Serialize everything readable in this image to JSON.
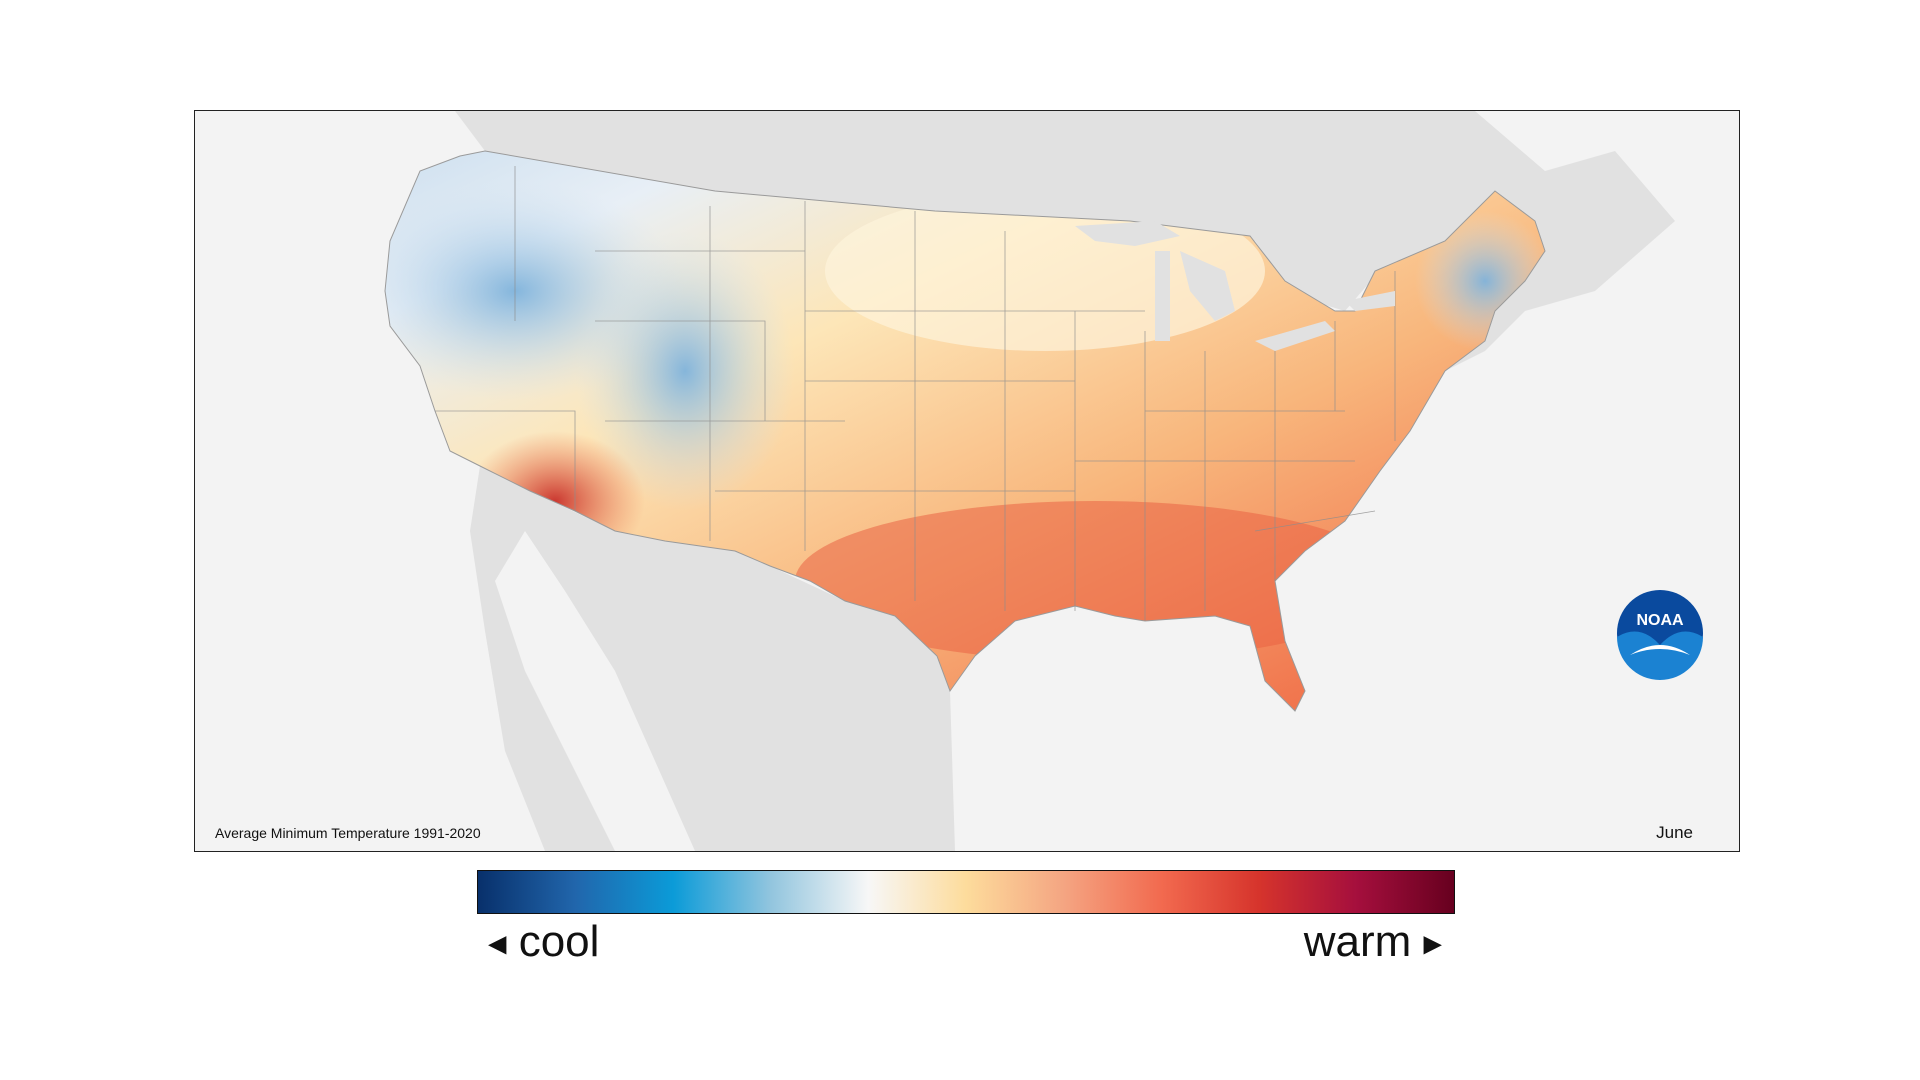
{
  "map": {
    "caption": "Average Minimum Temperature 1991-2020",
    "month": "June",
    "logo_text": "NOAA"
  },
  "legend": {
    "cool_label": "cool",
    "warm_label": "warm",
    "cool_arrow": "◀",
    "warm_arrow": "▶",
    "colors": [
      "#08306b",
      "#2166ac",
      "#0b9bd8",
      "#92c5de",
      "#f7f7f7",
      "#fddc9c",
      "#f4a582",
      "#f26a4f",
      "#d6342c",
      "#a50f3d",
      "#67001f"
    ]
  }
}
